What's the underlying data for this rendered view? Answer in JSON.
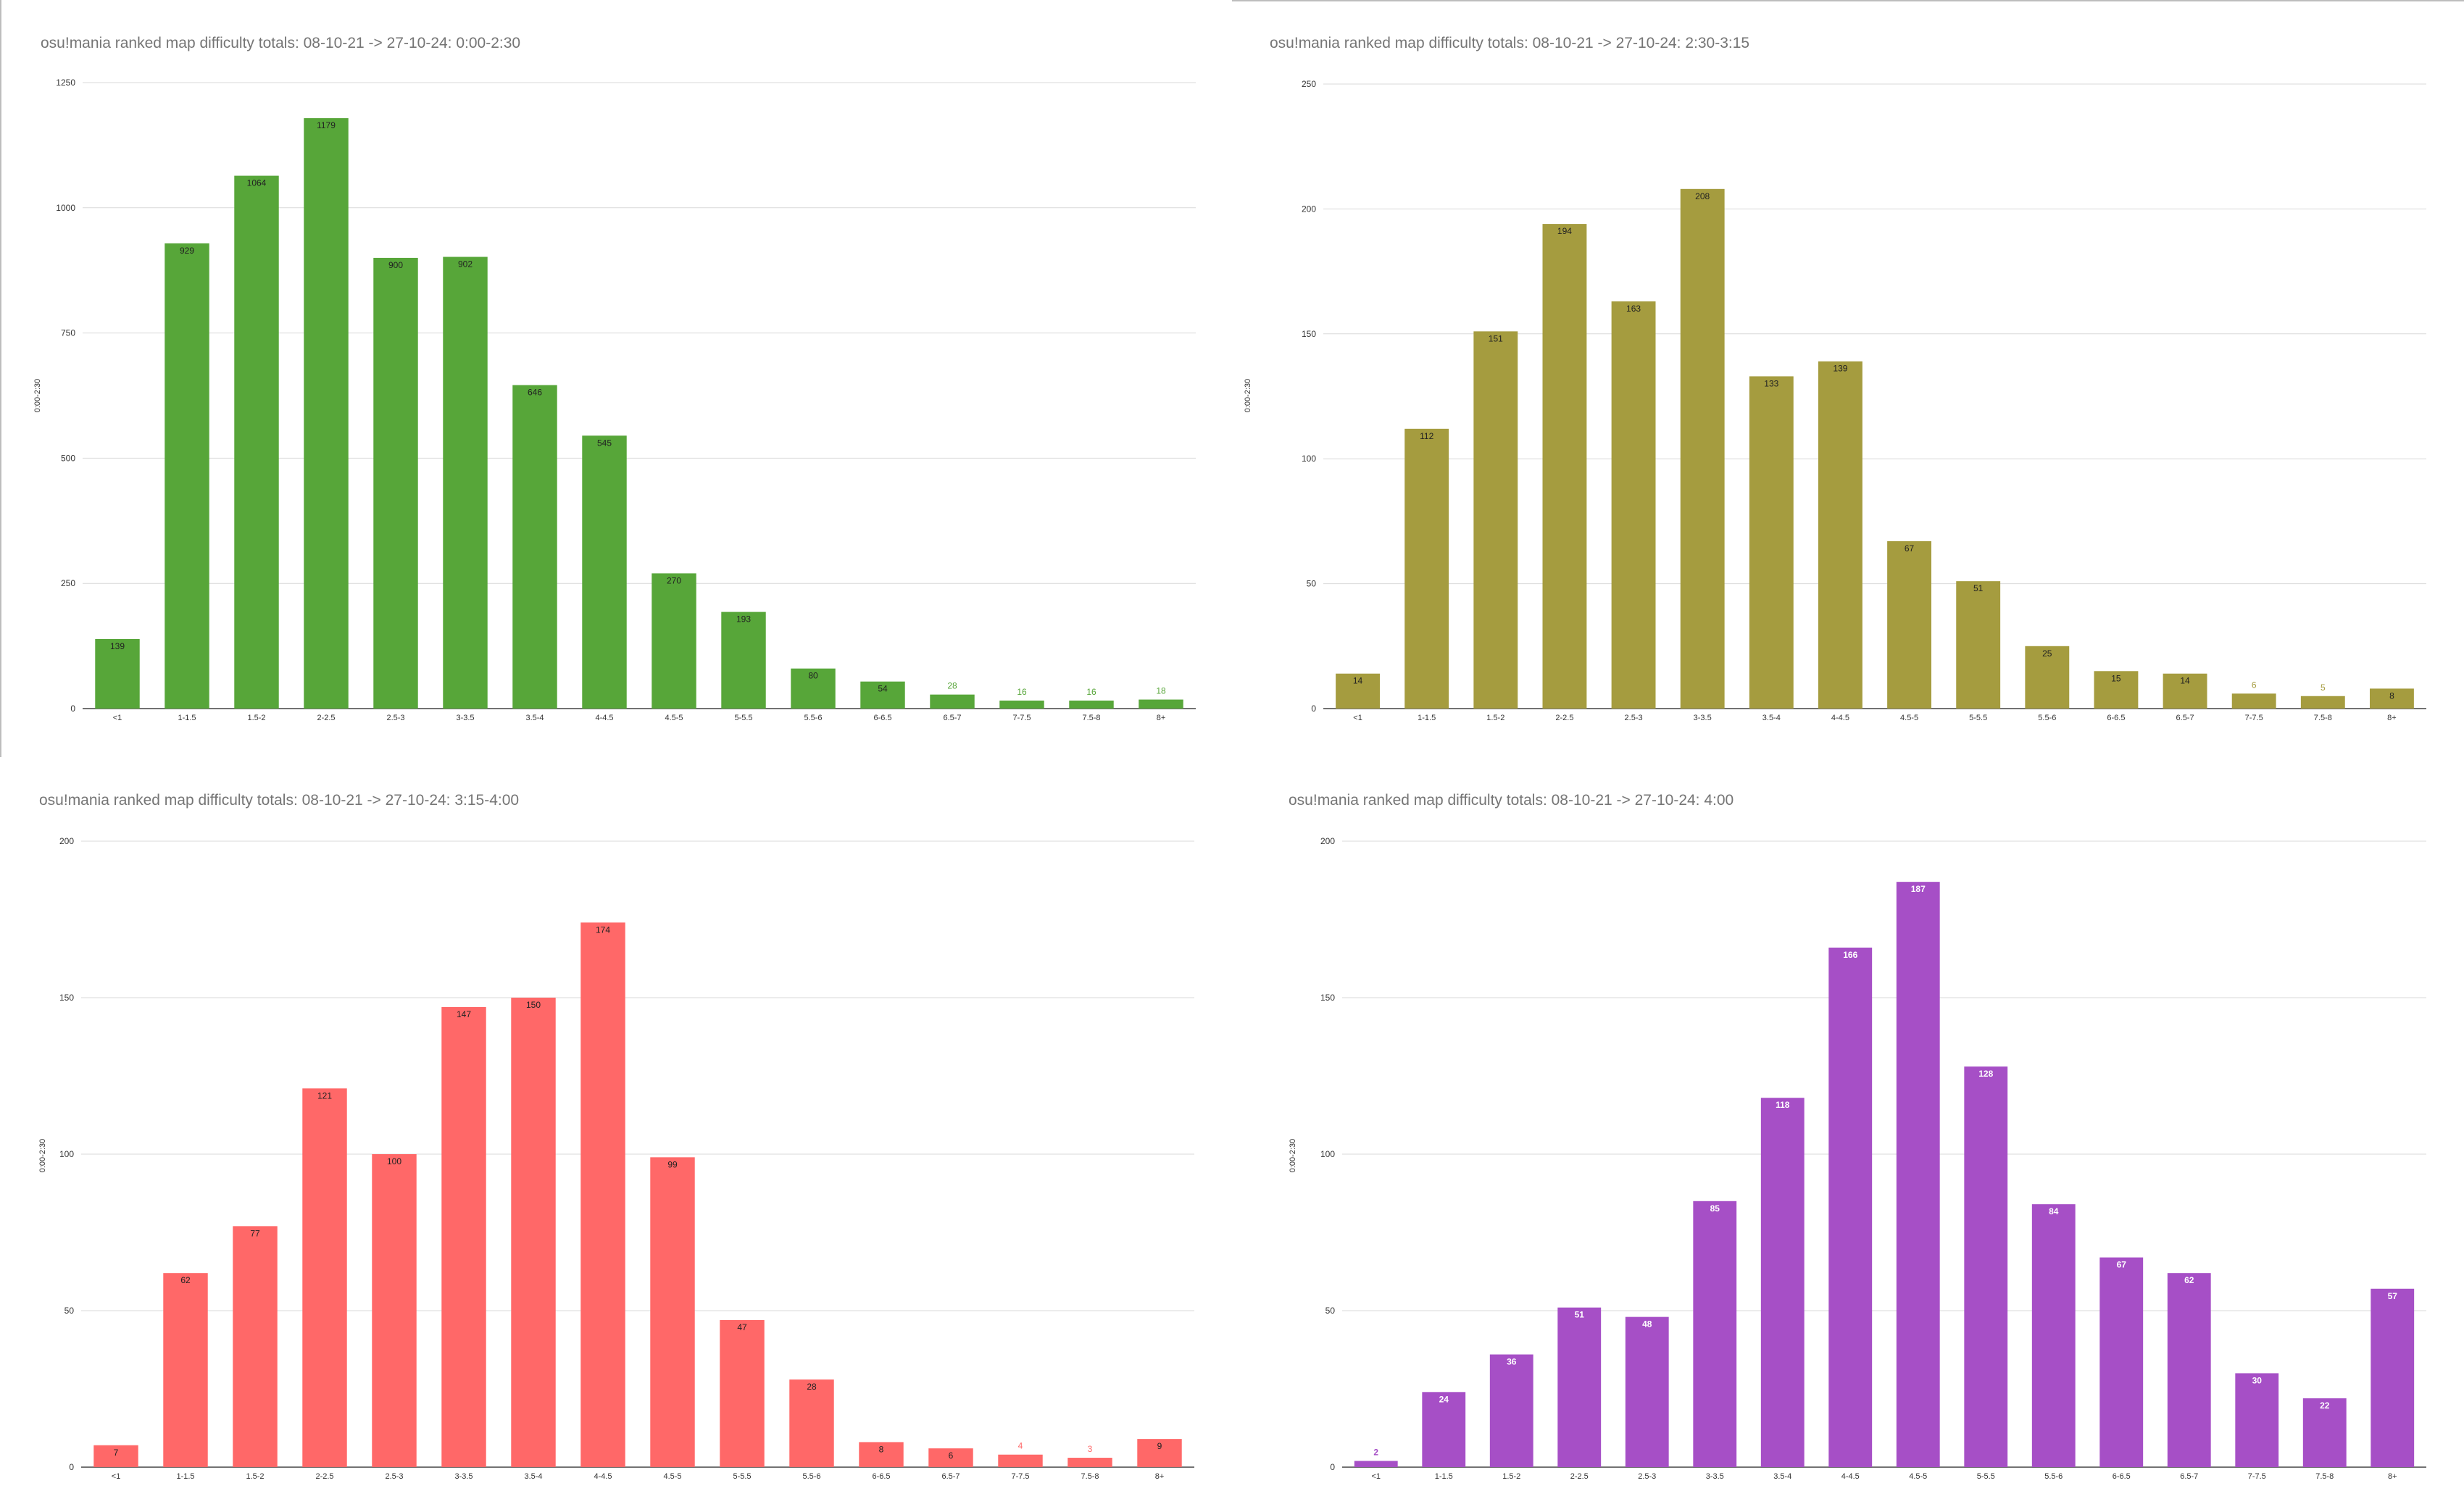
{
  "categories": [
    "<1",
    "1-1.5",
    "1.5-2",
    "2-2.5",
    "2.5-3",
    "3-3.5",
    "3.5-4",
    "4-4.5",
    "4.5-5",
    "5-5.5",
    "5.5-6",
    "6-6.5",
    "6.5-7",
    "7-7.5",
    "7.5-8",
    "8+"
  ],
  "chart_data": [
    {
      "type": "bar",
      "title": "osu!mania ranked map difficulty totals: 08-10-21 -> 27-10-24: 0:00-2:30",
      "ylabel": "0:00-2:30",
      "xlabel": "",
      "ylim": [
        0,
        1250
      ],
      "yticks": [
        0,
        250,
        500,
        750,
        1000,
        1250
      ],
      "grid": true,
      "legend": "none",
      "color": "#57a639",
      "label_color": "#222222",
      "outside_label_color": "#57a639",
      "categories": [
        "<1",
        "1-1.5",
        "1.5-2",
        "2-2.5",
        "2.5-3",
        "3-3.5",
        "3.5-4",
        "4-4.5",
        "4.5-5",
        "5-5.5",
        "5.5-6",
        "6-6.5",
        "6.5-7",
        "7-7.5",
        "7.5-8",
        "8+"
      ],
      "values": [
        139,
        929,
        1064,
        1179,
        900,
        902,
        646,
        545,
        270,
        193,
        80,
        54,
        28,
        16,
        16,
        18
      ]
    },
    {
      "type": "bar",
      "title": "osu!mania ranked map difficulty totals: 08-10-21 -> 27-10-24: 2:30-3:15",
      "ylabel": "0:00-2:30",
      "xlabel": "",
      "ylim": [
        0,
        250
      ],
      "yticks": [
        0,
        50,
        100,
        150,
        200,
        250
      ],
      "grid": true,
      "legend": "none",
      "color": "#a59c3f",
      "label_color": "#222222",
      "outside_label_color": "#a59c3f",
      "categories": [
        "<1",
        "1-1.5",
        "1.5-2",
        "2-2.5",
        "2.5-3",
        "3-3.5",
        "3.5-4",
        "4-4.5",
        "4.5-5",
        "5-5.5",
        "5.5-6",
        "6-6.5",
        "6.5-7",
        "7-7.5",
        "7.5-8",
        "8+"
      ],
      "values": [
        14,
        112,
        151,
        194,
        163,
        208,
        133,
        139,
        67,
        51,
        25,
        15,
        14,
        6,
        5,
        8
      ]
    },
    {
      "type": "bar",
      "title": "osu!mania ranked map difficulty totals: 08-10-21 -> 27-10-24: 3:15-4:00",
      "ylabel": "0:00-2:30",
      "xlabel": "",
      "ylim": [
        0,
        200
      ],
      "yticks": [
        0,
        50,
        100,
        150,
        200
      ],
      "grid": true,
      "legend": "none",
      "color": "#ff6868",
      "label_color": "#222222",
      "outside_label_color": "#ff6868",
      "categories": [
        "<1",
        "1-1.5",
        "1.5-2",
        "2-2.5",
        "2.5-3",
        "3-3.5",
        "3.5-4",
        "4-4.5",
        "4.5-5",
        "5-5.5",
        "5.5-6",
        "6-6.5",
        "6.5-7",
        "7-7.5",
        "7.5-8",
        "8+"
      ],
      "values": [
        7,
        62,
        77,
        121,
        100,
        147,
        150,
        174,
        99,
        47,
        28,
        8,
        6,
        4,
        3,
        9
      ]
    },
    {
      "type": "bar",
      "title": "osu!mania ranked map difficulty totals: 08-10-21 -> 27-10-24: 4:00",
      "ylabel": "0:00-2:30",
      "xlabel": "",
      "ylim": [
        0,
        200
      ],
      "yticks": [
        0,
        50,
        100,
        150,
        200
      ],
      "grid": true,
      "legend": "none",
      "color": "#a64fc6",
      "label_color": "#ffffff",
      "outside_label_color": "#a64fc6",
      "categories": [
        "<1",
        "1-1.5",
        "1.5-2",
        "2-2.5",
        "2.5-3",
        "3-3.5",
        "3.5-4",
        "4-4.5",
        "4.5-5",
        "5-5.5",
        "5.5-6",
        "6-6.5",
        "6.5-7",
        "7-7.5",
        "7.5-8",
        "8+"
      ],
      "values": [
        2,
        24,
        36,
        51,
        48,
        85,
        118,
        166,
        187,
        128,
        84,
        67,
        62,
        30,
        22,
        57
      ]
    }
  ]
}
